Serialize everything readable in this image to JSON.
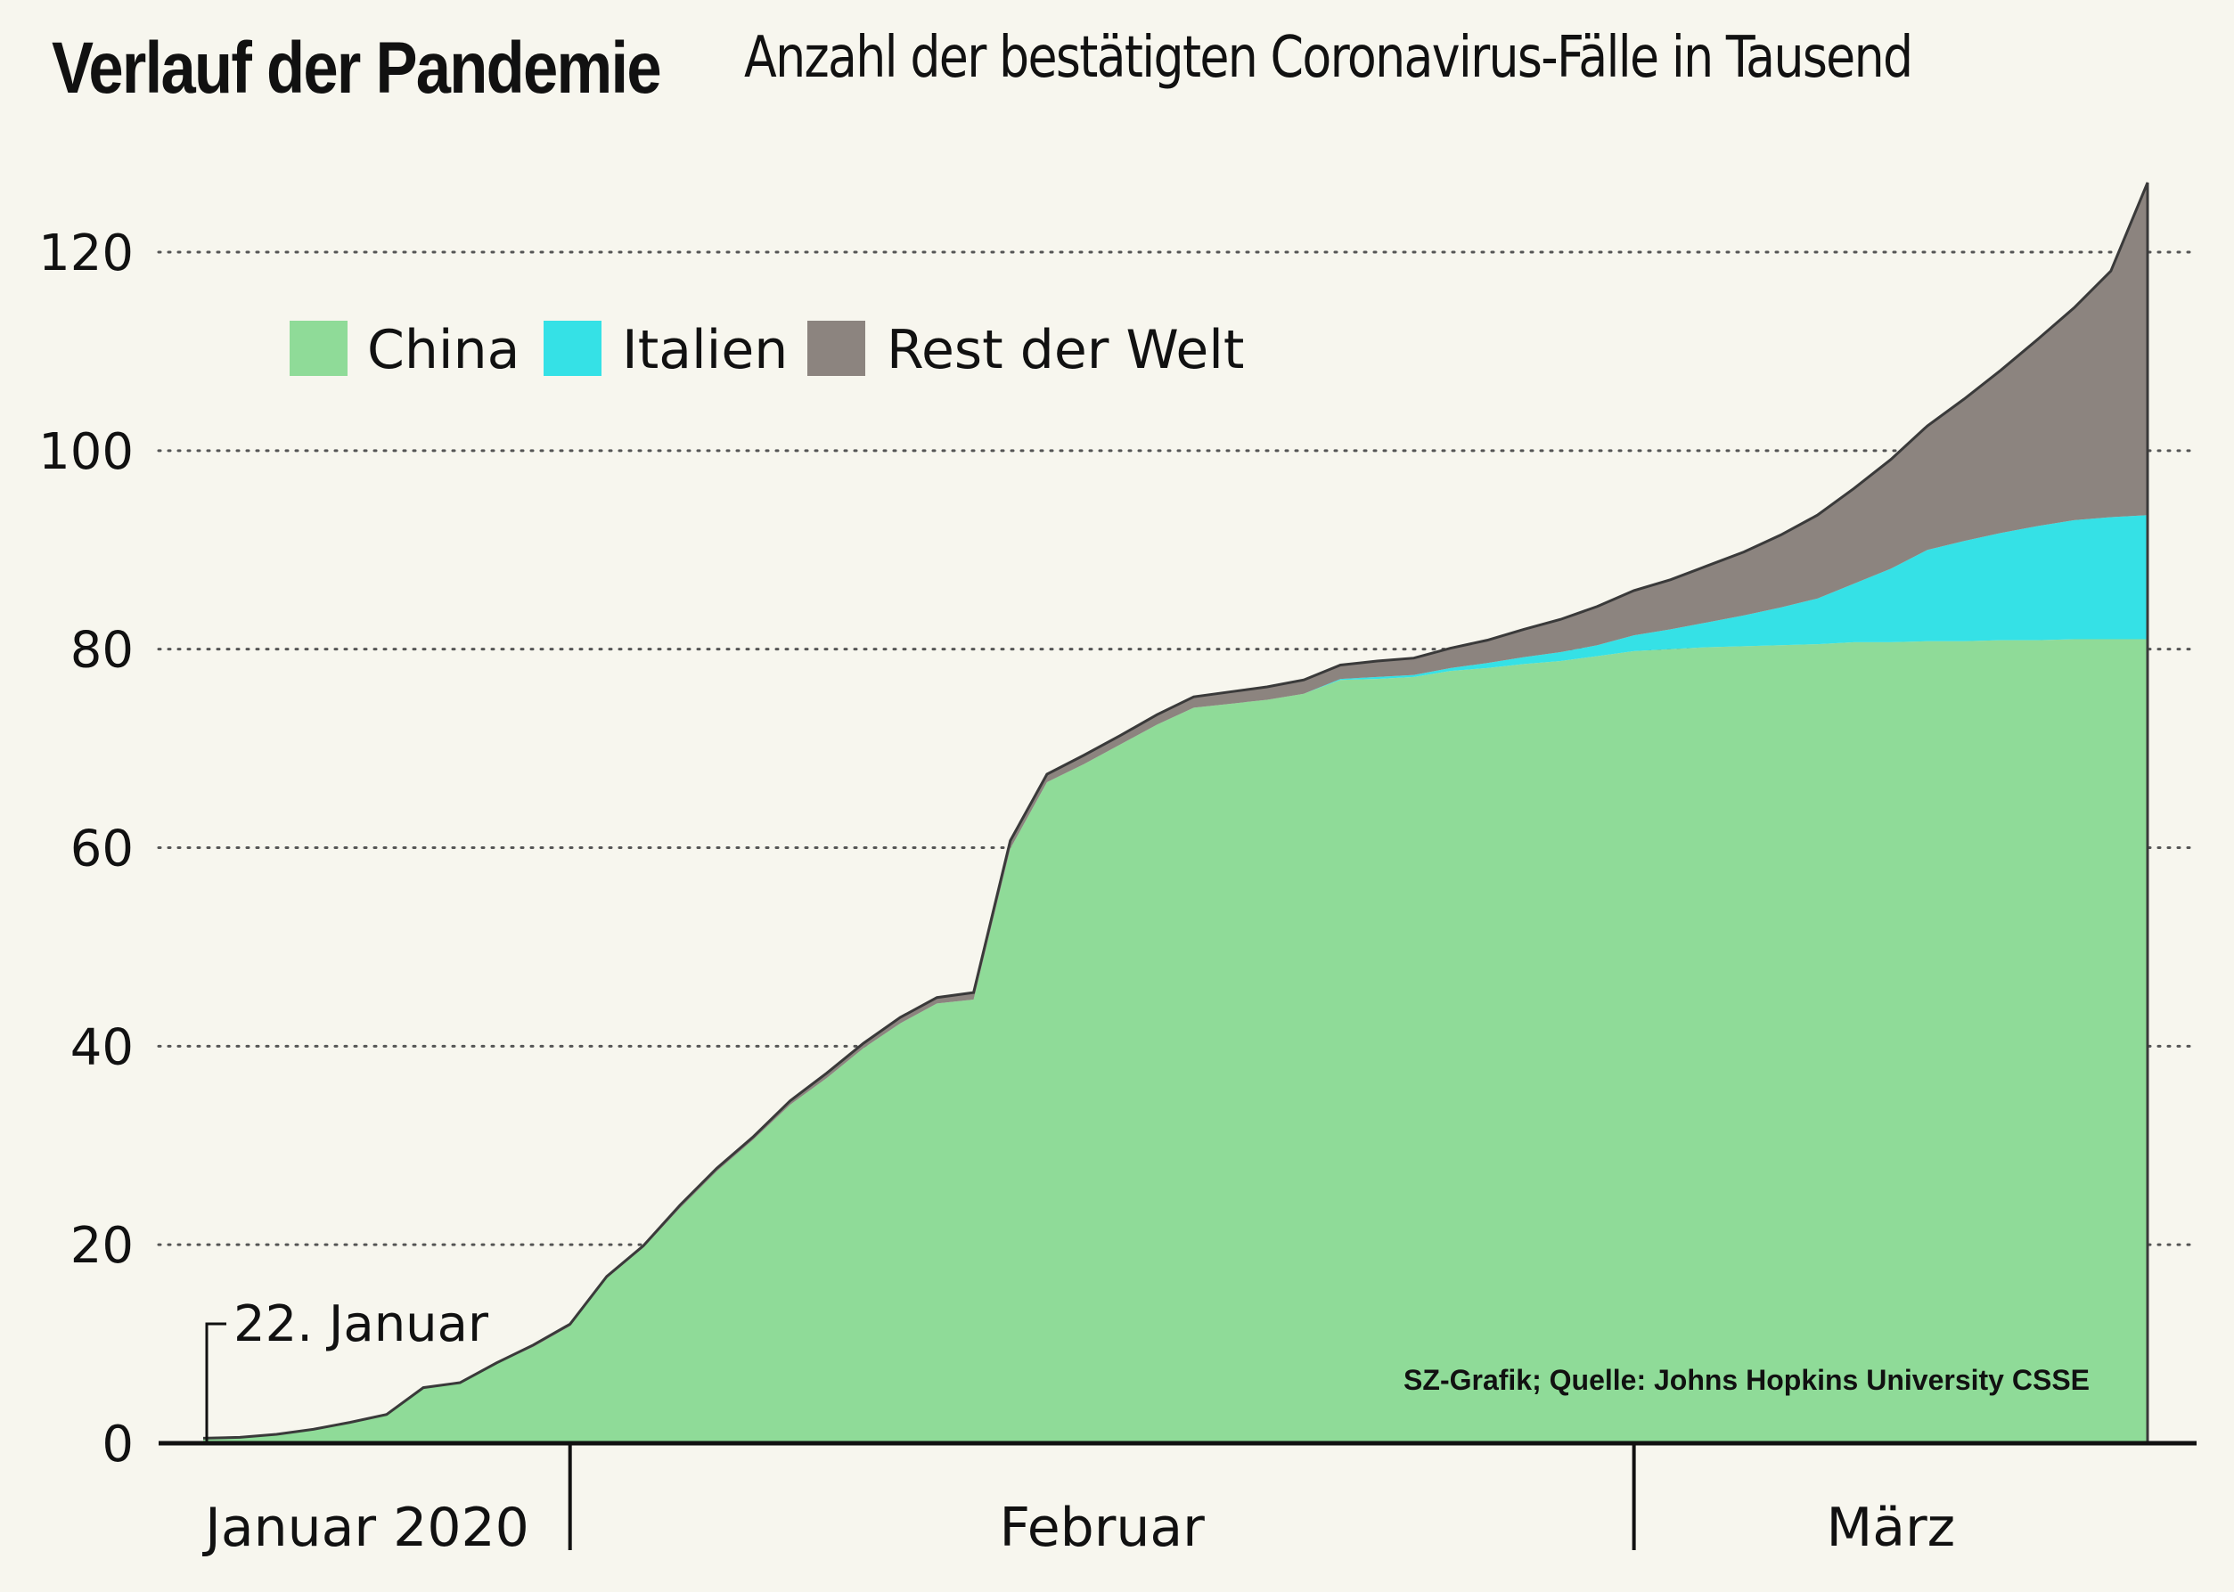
{
  "colors": {
    "background": "#f7f6ee",
    "china": "#8fdb98",
    "italien": "#35e1e6",
    "rest": "#8c847f",
    "outline": "#3a3a3a",
    "grid": "#555555"
  },
  "chart_data": {
    "type": "area",
    "stacked": true,
    "title": "Verlauf der Pandemie",
    "subtitle": "Anzahl der bestätigten Coronavirus-Fälle in Tausend",
    "x_start": "2020-01-22",
    "x_end": "2020-03-15",
    "ylim": [
      0,
      125
    ],
    "yticks": [
      0,
      20,
      40,
      60,
      80,
      100,
      120
    ],
    "grid": "dotted horizontal",
    "legend_position": "top-left",
    "legend": [
      {
        "label": "China",
        "series": "china"
      },
      {
        "label": "Italien",
        "series": "italien"
      },
      {
        "label": "Rest der Welt",
        "series": "rest"
      }
    ],
    "month_labels": [
      {
        "label": "Januar 2020",
        "from": "2020-01-22",
        "to": "2020-02-01"
      },
      {
        "label": "Februar",
        "from": "2020-02-01",
        "to": "2020-03-01"
      },
      {
        "label": "März",
        "from": "2020-03-01",
        "to": "2020-03-15"
      }
    ],
    "annotation": {
      "label": "22. Januar",
      "x": "2020-01-22"
    },
    "source": "SZ-Grafik; Quelle: Johns Hopkins University CSSE",
    "x": [
      "2020-01-22",
      "2020-01-23",
      "2020-01-24",
      "2020-01-25",
      "2020-01-26",
      "2020-01-27",
      "2020-01-28",
      "2020-01-29",
      "2020-01-30",
      "2020-01-31",
      "2020-02-01",
      "2020-02-02",
      "2020-02-03",
      "2020-02-04",
      "2020-02-05",
      "2020-02-06",
      "2020-02-07",
      "2020-02-08",
      "2020-02-09",
      "2020-02-10",
      "2020-02-11",
      "2020-02-12",
      "2020-02-13",
      "2020-02-14",
      "2020-02-15",
      "2020-02-16",
      "2020-02-17",
      "2020-02-18",
      "2020-02-19",
      "2020-02-20",
      "2020-02-21",
      "2020-02-22",
      "2020-02-23",
      "2020-02-24",
      "2020-02-25",
      "2020-02-26",
      "2020-02-27",
      "2020-02-28",
      "2020-02-29",
      "2020-03-01",
      "2020-03-02",
      "2020-03-03",
      "2020-03-04",
      "2020-03-05",
      "2020-03-06",
      "2020-03-07",
      "2020-03-08",
      "2020-03-09",
      "2020-03-10",
      "2020-03-11",
      "2020-03-12",
      "2020-03-13",
      "2020-03-14",
      "2020-03-15"
    ],
    "series": [
      {
        "name": "China",
        "key": "china",
        "values": [
          0.5,
          0.6,
          0.9,
          1.4,
          2.1,
          2.9,
          5.5,
          6.0,
          8.0,
          9.7,
          11.8,
          16.6,
          19.7,
          23.7,
          27.4,
          30.6,
          34.1,
          36.8,
          39.8,
          42.3,
          44.3,
          44.7,
          59.9,
          66.6,
          68.4,
          70.4,
          72.4,
          74.1,
          74.5,
          74.9,
          75.5,
          76.9,
          77.0,
          77.2,
          77.8,
          78.1,
          78.5,
          78.8,
          79.3,
          79.8,
          80.0,
          80.2,
          80.3,
          80.4,
          80.5,
          80.7,
          80.7,
          80.8,
          80.8,
          80.9,
          80.9,
          81.0,
          81.0,
          81.0
        ]
      },
      {
        "name": "Italien",
        "key": "italien",
        "values": [
          0,
          0,
          0,
          0,
          0,
          0,
          0,
          0,
          0,
          0,
          0,
          0,
          0,
          0,
          0,
          0,
          0,
          0,
          0,
          0,
          0,
          0,
          0,
          0,
          0,
          0,
          0,
          0,
          0,
          0,
          0,
          0.1,
          0.2,
          0.2,
          0.3,
          0.5,
          0.7,
          0.9,
          1.1,
          1.6,
          2.0,
          2.5,
          3.1,
          3.8,
          4.6,
          5.9,
          7.4,
          9.2,
          10.1,
          10.8,
          11.5,
          12.0,
          12.3,
          12.5
        ]
      },
      {
        "name": "Rest der Welt",
        "key": "rest",
        "values": [
          0,
          0,
          0,
          0,
          0,
          0,
          0.1,
          0.1,
          0.1,
          0.2,
          0.2,
          0.2,
          0.2,
          0.3,
          0.3,
          0.3,
          0.4,
          0.5,
          0.5,
          0.6,
          0.6,
          0.7,
          0.8,
          0.8,
          0.9,
          0.9,
          1.0,
          1.1,
          1.2,
          1.3,
          1.4,
          1.4,
          1.6,
          1.7,
          2.0,
          2.3,
          2.8,
          3.3,
          3.9,
          4.5,
          5.0,
          5.7,
          6.4,
          7.3,
          8.4,
          9.6,
          11.0,
          12.5,
          14.3,
          16.4,
          18.8,
          21.4,
          24.8,
          33.5
        ]
      }
    ]
  }
}
